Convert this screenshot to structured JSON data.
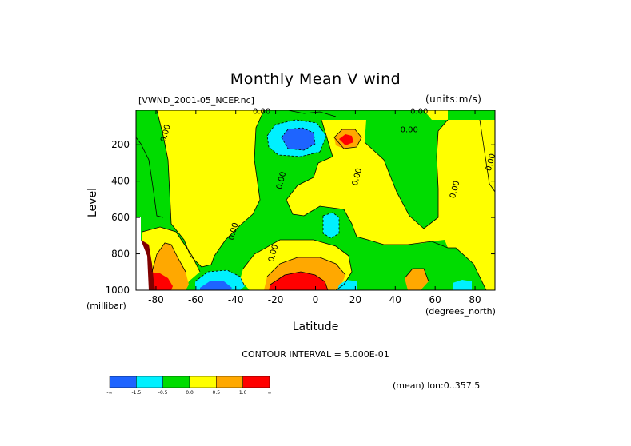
{
  "title": "Monthly Mean V wind",
  "file_label": "[VWND_2001-05_NCEP.nc]",
  "units_label": "(units:m/s)",
  "y_axis_label": "Level",
  "y_axis_units": "(millibar)",
  "x_axis_label": "Latitude",
  "x_axis_units": "(degrees_north)",
  "contour_interval_text": "CONTOUR INTERVAL = 5.000E-01",
  "mean_text": "(mean) lon:0..357.5",
  "colors": {
    "c_lt_neg1": "#1e64ff",
    "c_neg15_neg05": "#00f0ff",
    "c_neg05_0": "#00dc00",
    "c_0_05": "#ffff00",
    "c_05_15": "#ffa800",
    "c_gt_15": "#ff0000",
    "c_extreme": "#800000"
  },
  "chart_data": {
    "type": "heatmap",
    "x": {
      "label": "Latitude",
      "units": "(degrees_north)",
      "range": [
        -90,
        90
      ],
      "ticks": [
        -80,
        -60,
        -40,
        -20,
        0,
        20,
        40,
        60,
        80
      ]
    },
    "y": {
      "label": "Level",
      "units": "(millibar)",
      "range": [
        1000,
        10
      ],
      "reversed": true,
      "ticks": [
        200,
        400,
        600,
        800,
        1000
      ]
    },
    "contour_interval": 0.5,
    "contour_labels": [
      {
        "text": "0.00",
        "lat": -74,
        "lev": 140
      },
      {
        "text": "0.00",
        "lat": -27,
        "lev": 30
      },
      {
        "text": "0.00",
        "lat": 47,
        "lev": 130
      },
      {
        "text": "0.00",
        "lat": 52,
        "lev": 30
      },
      {
        "text": "0.00",
        "lat": -16,
        "lev": 400
      },
      {
        "text": "0.00",
        "lat": 22,
        "lev": 380
      },
      {
        "text": "0.00",
        "lat": -40,
        "lev": 680
      },
      {
        "text": "0.00",
        "lat": -20,
        "lev": 800
      },
      {
        "text": "0.00",
        "lat": 71,
        "lev": 450
      },
      {
        "text": "0.00",
        "lat": 89,
        "lev": 300
      }
    ],
    "colorbar": {
      "labels": [
        "-∞",
        "-1.5",
        "-0.5",
        "0.0",
        "0.5",
        "1.0",
        "∞"
      ],
      "colors": [
        "#1e64ff",
        "#00f0ff",
        "#00dc00",
        "#ffff00",
        "#ffa800",
        "#ff0000"
      ]
    }
  }
}
